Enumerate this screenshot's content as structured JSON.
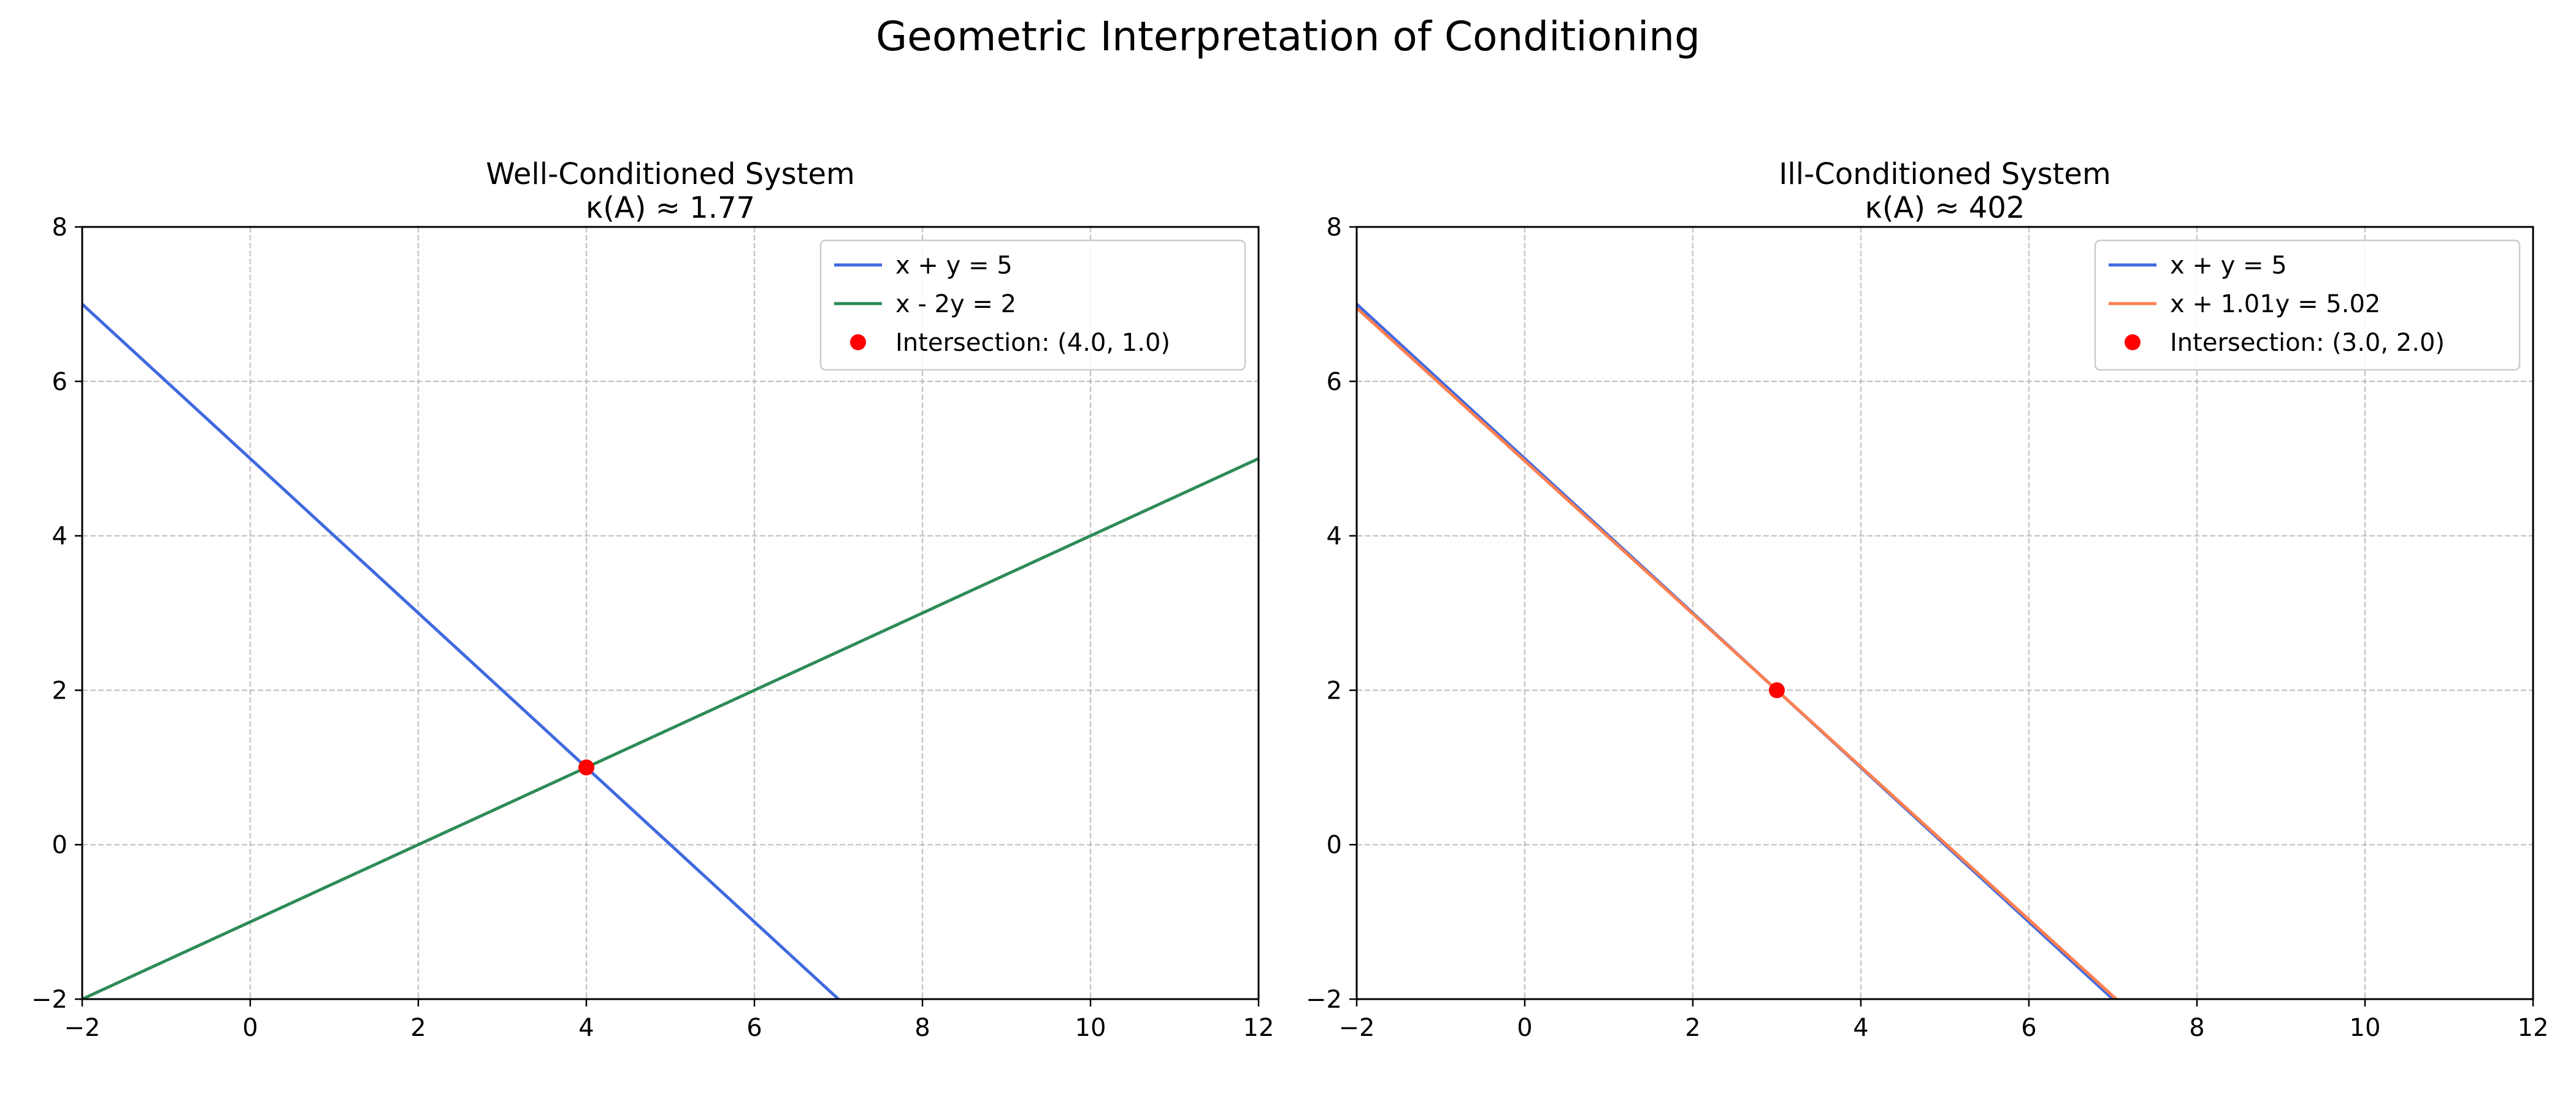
{
  "figure": {
    "suptitle": "Geometric Interpretation of Conditioning"
  },
  "chart_data": [
    {
      "type": "line",
      "title": "Well-Conditioned System",
      "subtitle": "κ(A) ≈ 1.77",
      "xlabel": "",
      "ylabel": "",
      "xlim": [
        -2,
        12
      ],
      "ylim": [
        -2,
        8
      ],
      "xticks": [
        -2,
        0,
        2,
        4,
        6,
        8,
        10,
        12
      ],
      "yticks": [
        -2,
        0,
        2,
        4,
        6,
        8
      ],
      "xtick_labels": [
        "−2",
        "0",
        "2",
        "4",
        "6",
        "8",
        "10",
        "12"
      ],
      "ytick_labels": [
        "−2",
        "0",
        "2",
        "4",
        "6",
        "8"
      ],
      "grid": true,
      "legend_position": "top-right",
      "series": [
        {
          "name": "x + y = 5",
          "color": "#4169E1",
          "x": [
            -2,
            7.0
          ],
          "y": [
            7,
            -2.0
          ]
        },
        {
          "name": "x - 2y = 2",
          "color": "#2E8B57",
          "x": [
            -2,
            12
          ],
          "y": [
            -2,
            5
          ]
        }
      ],
      "point": {
        "name": "Intersection: (4.0, 1.0)",
        "color": "#FF0000",
        "x": 4.0,
        "y": 1.0
      }
    },
    {
      "type": "line",
      "title": "Ill-Conditioned System",
      "subtitle": "κ(A) ≈ 402",
      "xlabel": "",
      "ylabel": "",
      "xlim": [
        -2,
        12
      ],
      "ylim": [
        -2,
        8
      ],
      "xticks": [
        -2,
        0,
        2,
        4,
        6,
        8,
        10,
        12
      ],
      "yticks": [
        -2,
        0,
        2,
        4,
        6,
        8
      ],
      "xtick_labels": [
        "−2",
        "0",
        "2",
        "4",
        "6",
        "8",
        "10",
        "12"
      ],
      "ytick_labels": [
        "−2",
        "0",
        "2",
        "4",
        "6",
        "8"
      ],
      "grid": true,
      "legend_position": "top-right",
      "series": [
        {
          "name": "x + y = 5",
          "color": "#4169E1",
          "x": [
            -2,
            7.0
          ],
          "y": [
            7,
            -2.0
          ]
        },
        {
          "name": "x + 1.01y = 5.02",
          "color": "#FF7F50",
          "x": [
            -2,
            7.04
          ],
          "y": [
            6.95,
            -2.0
          ]
        }
      ],
      "point": {
        "name": "Intersection: (3.0, 2.0)",
        "color": "#FF0000",
        "x": 3.0,
        "y": 2.0
      }
    }
  ]
}
